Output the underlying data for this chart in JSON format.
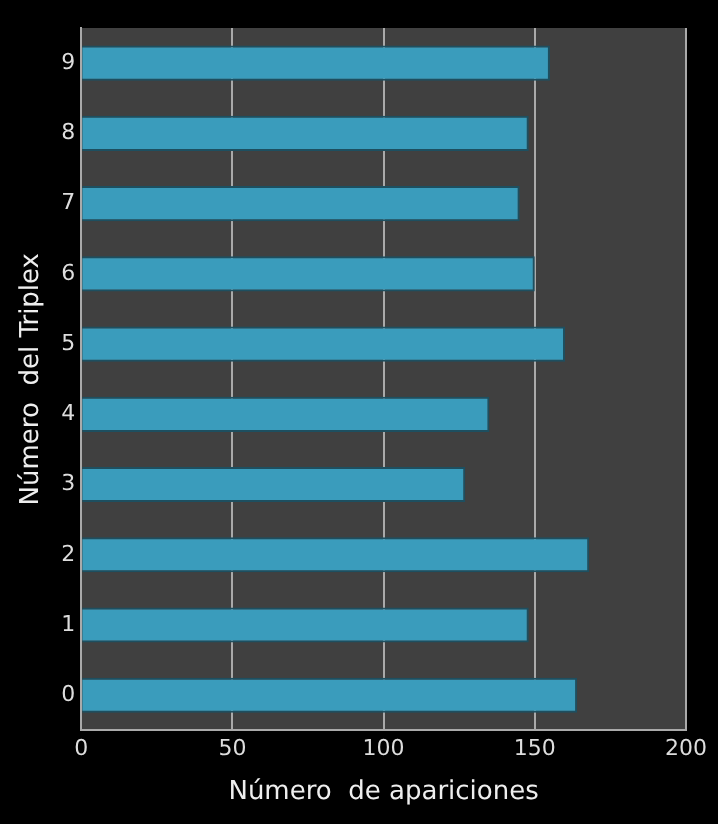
{
  "chart_data": {
    "type": "bar",
    "orientation": "horizontal",
    "xlabel": "Número  de apariciones",
    "ylabel": "Número  del Triplex",
    "categories": [
      "9",
      "8",
      "7",
      "6",
      "5",
      "4",
      "3",
      "2",
      "1",
      "0"
    ],
    "values": [
      155,
      148,
      145,
      150,
      160,
      135,
      127,
      168,
      148,
      164
    ],
    "color": "#3a9cbc",
    "xlim": [
      0,
      200
    ],
    "xticks": [
      0,
      50,
      100,
      150,
      200
    ],
    "grid": "x",
    "legend": false
  }
}
